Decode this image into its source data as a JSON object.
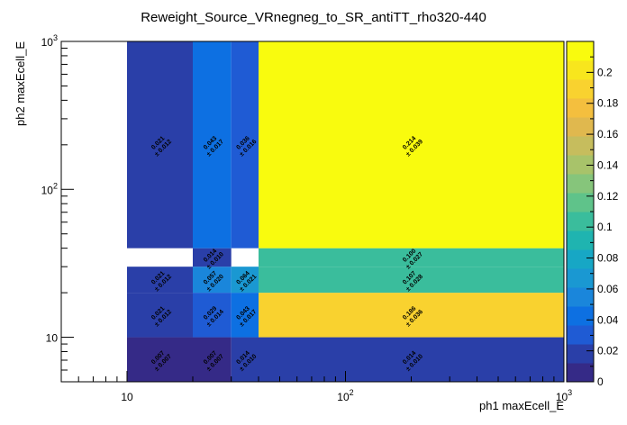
{
  "chart_data": {
    "type": "heatmap",
    "title": "Reweight_Source_VRnegneg_to_SR_antiTT_rho320-440",
    "xlabel": "ph1 maxEcell_E",
    "ylabel": "ph2 maxEcell_E",
    "x_scale": "log",
    "y_scale": "log",
    "xlim": [
      5,
      1000
    ],
    "ylim": [
      5,
      1000
    ],
    "x_ticks": [
      {
        "value": 10,
        "base": "10",
        "exp": ""
      },
      {
        "value": 100,
        "base": "10",
        "exp": "2"
      },
      {
        "value": 1000,
        "base": "10",
        "exp": "3"
      }
    ],
    "y_ticks": [
      {
        "value": 10,
        "base": "10",
        "exp": ""
      },
      {
        "value": 100,
        "base": "10",
        "exp": "2"
      },
      {
        "value": 1000,
        "base": "10",
        "exp": "3"
      }
    ],
    "x_edges": [
      10,
      20,
      30,
      40,
      1000
    ],
    "y_edges": [
      5,
      10,
      20,
      30,
      40,
      1000
    ],
    "z_range": [
      0,
      0.22
    ],
    "colorbar_ticks": [
      "0",
      "0.02",
      "0.04",
      "0.06",
      "0.08",
      "0.1",
      "0.12",
      "0.14",
      "0.16",
      "0.18",
      "0.2"
    ],
    "colorbar_tick_values": [
      0,
      0.02,
      0.04,
      0.06,
      0.08,
      0.1,
      0.12,
      0.14,
      0.16,
      0.18,
      0.2
    ],
    "palette": [
      "#352a87",
      "#2a3fa8",
      "#1f5bd4",
      "#0d70e2",
      "#1a86db",
      "#1a98d2",
      "#17a7c5",
      "#1fb4b0",
      "#3abd9c",
      "#5fc38a",
      "#86c57b",
      "#a8c36a",
      "#c6bd5d",
      "#e0b84e",
      "#f4bf3e",
      "#f9d22f",
      "#f8e61d",
      "#f9fb0e"
    ],
    "cells": [
      {
        "x": [
          10,
          20
        ],
        "y": [
          5,
          10
        ],
        "value": 0.007,
        "label": "0.007",
        "error": "± 0.007"
      },
      {
        "x": [
          20,
          30
        ],
        "y": [
          5,
          10
        ],
        "value": 0.007,
        "label": "0.007",
        "error": "± 0.007"
      },
      {
        "x": [
          30,
          40
        ],
        "y": [
          5,
          10
        ],
        "value": 0.014,
        "label": "0.014",
        "error": "± 0.010"
      },
      {
        "x": [
          40,
          1000
        ],
        "y": [
          5,
          10
        ],
        "value": 0.014,
        "label": "0.014",
        "error": "± 0.010"
      },
      {
        "x": [
          10,
          20
        ],
        "y": [
          10,
          20
        ],
        "value": 0.021,
        "label": "0.021",
        "error": "± 0.012"
      },
      {
        "x": [
          20,
          30
        ],
        "y": [
          10,
          20
        ],
        "value": 0.029,
        "label": "0.029",
        "error": "± 0.014"
      },
      {
        "x": [
          30,
          40
        ],
        "y": [
          10,
          20
        ],
        "value": 0.043,
        "label": "0.043",
        "error": "± 0.017"
      },
      {
        "x": [
          40,
          1000
        ],
        "y": [
          10,
          20
        ],
        "value": 0.186,
        "label": "0.186",
        "error": "± 0.036"
      },
      {
        "x": [
          10,
          20
        ],
        "y": [
          20,
          30
        ],
        "value": 0.021,
        "label": "0.021",
        "error": "± 0.012"
      },
      {
        "x": [
          20,
          30
        ],
        "y": [
          20,
          30
        ],
        "value": 0.057,
        "label": "0.057",
        "error": "± 0.020"
      },
      {
        "x": [
          30,
          40
        ],
        "y": [
          20,
          30
        ],
        "value": 0.064,
        "label": "0.064",
        "error": "± 0.021"
      },
      {
        "x": [
          40,
          1000
        ],
        "y": [
          20,
          30
        ],
        "value": 0.107,
        "label": "0.107",
        "error": "± 0.028"
      },
      {
        "x": [
          20,
          30
        ],
        "y": [
          30,
          40
        ],
        "value": 0.014,
        "label": "0.014",
        "error": "± 0.010"
      },
      {
        "x": [
          40,
          1000
        ],
        "y": [
          30,
          40
        ],
        "value": 0.1,
        "label": "0.100",
        "error": "± 0.027"
      },
      {
        "x": [
          10,
          20
        ],
        "y": [
          40,
          1000
        ],
        "value": 0.021,
        "label": "0.021",
        "error": "± 0.012"
      },
      {
        "x": [
          20,
          30
        ],
        "y": [
          40,
          1000
        ],
        "value": 0.043,
        "label": "0.043",
        "error": "± 0.017"
      },
      {
        "x": [
          30,
          40
        ],
        "y": [
          40,
          1000
        ],
        "value": 0.036,
        "label": "0.036",
        "error": "± 0.016"
      },
      {
        "x": [
          40,
          1000
        ],
        "y": [
          40,
          1000
        ],
        "value": 0.214,
        "label": "0.214",
        "error": "± 0.039"
      }
    ]
  }
}
